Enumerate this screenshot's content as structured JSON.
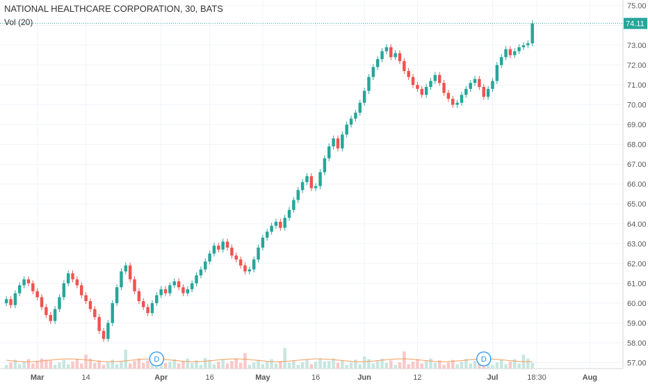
{
  "legend": {
    "title": "NATIONAL HEALTHCARE CORPORATION, 30, BATS",
    "volume_label": "Vol (20)"
  },
  "last_price": "74.11",
  "event_marker": "D",
  "colors": {
    "up": "#26a69a",
    "down": "#ef5350",
    "up_volume": "#c8e6df",
    "down_volume": "#f9c8c8",
    "volume_ma": "#f39c5a",
    "grid": "#f0f3fa",
    "axis_text": "#555555",
    "price_line": "#26a69a"
  },
  "chart_data": {
    "type": "candlestick",
    "title": "NATIONAL HEALTHCARE CORPORATION, 30, BATS",
    "ylim": [
      56.7,
      75.0
    ],
    "y_ticks": [
      57,
      58,
      59,
      60,
      61,
      62,
      63,
      64,
      65,
      66,
      67,
      68,
      69,
      70,
      71,
      72,
      73,
      74,
      75
    ],
    "y_tick_labels": [
      "57.00",
      "58.00",
      "59.00",
      "60.00",
      "61.00",
      "62.00",
      "63.00",
      "64.00",
      "65.00",
      "66.00",
      "67.00",
      "68.00",
      "69.00",
      "70.00",
      "71.00",
      "72.00",
      "73.00",
      "74.00",
      "75.00"
    ],
    "x_ticks": [
      {
        "label": "Mar",
        "index": 7,
        "bold": true
      },
      {
        "label": "14",
        "index": 18,
        "bold": false
      },
      {
        "label": "Apr",
        "index": 35,
        "bold": true
      },
      {
        "label": "16",
        "index": 46,
        "bold": false
      },
      {
        "label": "May",
        "index": 58,
        "bold": true
      },
      {
        "label": "16",
        "index": 70,
        "bold": false
      },
      {
        "label": "Jun",
        "index": 81,
        "bold": true
      },
      {
        "label": "12",
        "index": 93,
        "bold": false
      },
      {
        "label": "Jul",
        "index": 110,
        "bold": true
      },
      {
        "label": "18:30",
        "index": 120,
        "bold": false
      },
      {
        "label": "Aug",
        "index": 132,
        "bold": true
      }
    ],
    "dividend_marker_indices": [
      34,
      108
    ],
    "n_slots": 140,
    "close": [
      60.2,
      59.9,
      60.5,
      60.9,
      61.2,
      61.0,
      60.6,
      60.3,
      59.8,
      59.4,
      59.1,
      59.7,
      60.3,
      61.0,
      61.5,
      61.2,
      60.9,
      60.4,
      60.1,
      59.7,
      59.3,
      58.6,
      58.2,
      59.0,
      60.0,
      60.8,
      61.6,
      61.9,
      61.2,
      60.6,
      60.1,
      59.8,
      59.5,
      60.0,
      60.4,
      60.7,
      60.5,
      60.9,
      61.1,
      60.8,
      60.5,
      60.7,
      61.0,
      61.4,
      61.7,
      62.1,
      62.5,
      62.9,
      62.7,
      63.1,
      62.8,
      62.4,
      62.2,
      61.9,
      61.6,
      61.7,
      62.2,
      62.8,
      63.3,
      63.6,
      63.9,
      64.1,
      63.8,
      64.3,
      64.7,
      65.2,
      65.7,
      66.1,
      66.4,
      65.8,
      65.9,
      66.6,
      67.3,
      67.9,
      68.3,
      67.8,
      68.5,
      69.0,
      69.3,
      69.6,
      70.1,
      70.7,
      71.4,
      71.9,
      72.3,
      72.7,
      72.9,
      72.4,
      72.6,
      72.2,
      71.7,
      71.4,
      71.0,
      70.8,
      70.5,
      70.9,
      71.2,
      71.5,
      71.1,
      70.6,
      70.3,
      70.0,
      70.1,
      70.5,
      70.8,
      71.1,
      71.3,
      70.9,
      70.4,
      70.8,
      71.2,
      72.0,
      72.4,
      72.8,
      72.5,
      72.7,
      72.9,
      73.0,
      73.1,
      74.1
    ],
    "volume_scale_max": 1.0
  }
}
